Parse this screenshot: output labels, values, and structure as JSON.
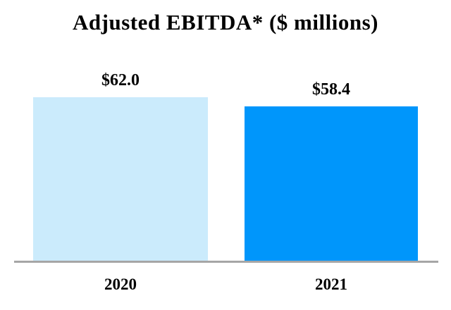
{
  "chart_data": {
    "type": "bar",
    "title": "Adjusted EBITDA* ($ millions)",
    "categories": [
      "2020",
      "2021"
    ],
    "values": [
      62.0,
      58.4
    ],
    "value_labels": [
      "$62.0",
      "$58.4"
    ],
    "series": [
      {
        "name": "Adjusted EBITDA",
        "values": [
          62.0,
          58.4
        ]
      }
    ],
    "xlabel": "",
    "ylabel": "",
    "ylim": [
      0,
      62
    ],
    "grid": false,
    "legend_position": "none",
    "bar_colors": [
      "#CBEBFC",
      "#0096FB"
    ],
    "axis_line_color": "#A6A6A6",
    "background_color": "#FFFFFF"
  }
}
